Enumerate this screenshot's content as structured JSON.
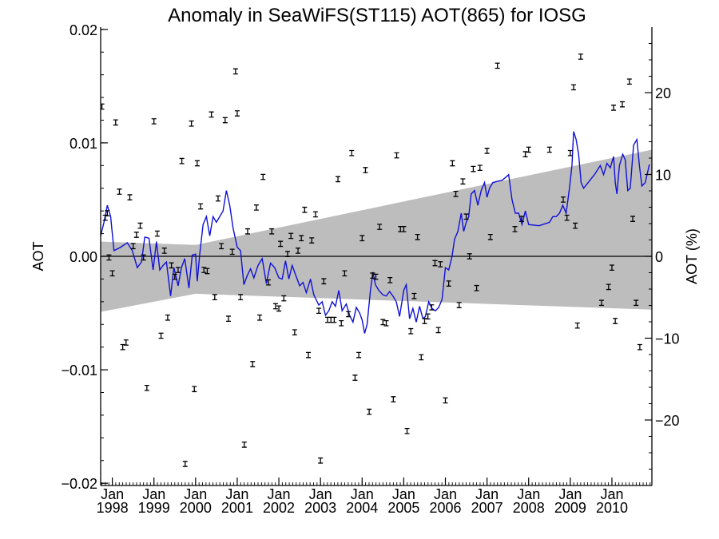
{
  "chart_data": {
    "type": "scatter",
    "title": "Anomaly in SeaWiFS(ST115) AOT(865) for IOSG",
    "ylabel": "AOT",
    "y2label": "AOT (%)",
    "xlabel": "",
    "xlim": [
      1997.72,
      2010.96
    ],
    "ylim": [
      -0.0202,
      0.0202
    ],
    "y2lim": [
      -28.0,
      28.0
    ],
    "y_ticks": [
      {
        "value": 0.02,
        "label": "0.02"
      },
      {
        "value": 0.01,
        "label": "0.01"
      },
      {
        "value": 0.0,
        "label": "0.00"
      },
      {
        "value": -0.01,
        "label": "−0.01"
      },
      {
        "value": -0.02,
        "label": "−0.02"
      }
    ],
    "y2_ticks": [
      {
        "value": 20,
        "label": "20"
      },
      {
        "value": 10,
        "label": "10"
      },
      {
        "value": 0,
        "label": "0"
      },
      {
        "value": -10,
        "label": "−10"
      },
      {
        "value": -20,
        "label": "−20"
      }
    ],
    "x_ticks": [
      {
        "value": 1998.0,
        "month": "Jan",
        "year": "1998"
      },
      {
        "value": 1999.0,
        "month": "Jan",
        "year": "1999"
      },
      {
        "value": 2000.0,
        "month": "Jan",
        "year": "2000"
      },
      {
        "value": 2001.0,
        "month": "Jan",
        "year": "2001"
      },
      {
        "value": 2002.0,
        "month": "Jan",
        "year": "2002"
      },
      {
        "value": 2003.0,
        "month": "Jan",
        "year": "2003"
      },
      {
        "value": 2004.0,
        "month": "Jan",
        "year": "2004"
      },
      {
        "value": 2005.0,
        "month": "Jan",
        "year": "2005"
      },
      {
        "value": 2006.0,
        "month": "Jan",
        "year": "2006"
      },
      {
        "value": 2007.0,
        "month": "Jan",
        "year": "2007"
      },
      {
        "value": 2008.0,
        "month": "Jan",
        "year": "2008"
      },
      {
        "value": 2009.0,
        "month": "Jan",
        "year": "2009"
      },
      {
        "value": 2010.0,
        "month": "Jan",
        "year": "2010"
      }
    ],
    "band_upper": [
      [
        1997.72,
        0.0013
      ],
      [
        2000.0,
        0.001
      ],
      [
        2010.96,
        0.0094
      ]
    ],
    "band_lower": [
      [
        1997.72,
        -0.0049
      ],
      [
        2000.0,
        -0.0033
      ],
      [
        2010.96,
        -0.0047
      ]
    ],
    "points": [
      [
        1997.75,
        0.0132
      ],
      [
        1997.83,
        0.0034
      ],
      [
        1997.88,
        0.0038
      ],
      [
        1997.92,
        -0.0001
      ],
      [
        1998.0,
        -0.0015
      ],
      [
        1998.08,
        0.0118
      ],
      [
        1998.17,
        0.0057
      ],
      [
        1998.25,
        -0.008
      ],
      [
        1998.33,
        -0.0076
      ],
      [
        1998.42,
        0.0052
      ],
      [
        1998.5,
        0.0009
      ],
      [
        1998.58,
        0.0019
      ],
      [
        1998.67,
        0.0027
      ],
      [
        1998.75,
        -0.0001
      ],
      [
        1998.83,
        -0.0116
      ],
      [
        1999.0,
        0.0119
      ],
      [
        1999.08,
        0.002
      ],
      [
        1999.17,
        -0.007
      ],
      [
        1999.25,
        0.0005
      ],
      [
        1999.33,
        -0.0054
      ],
      [
        1999.42,
        -0.0008
      ],
      [
        1999.5,
        -0.0018
      ],
      [
        1999.58,
        -0.0012
      ],
      [
        1999.67,
        0.0084
      ],
      [
        1999.75,
        -0.0183
      ],
      [
        1999.9,
        0.0117
      ],
      [
        1999.97,
        -0.0117
      ],
      [
        2000.04,
        0.0082
      ],
      [
        2000.12,
        0.0044
      ],
      [
        2000.2,
        -0.0012
      ],
      [
        2000.28,
        -0.0013
      ],
      [
        2000.38,
        0.0125
      ],
      [
        2000.46,
        -0.0036
      ],
      [
        2000.54,
        0.0051
      ],
      [
        2000.62,
        0.0009
      ],
      [
        2000.71,
        0.012
      ],
      [
        2000.79,
        -0.0055
      ],
      [
        2000.88,
        0.0004
      ],
      [
        2000.96,
        0.0163
      ],
      [
        2001.0,
        0.0126
      ],
      [
        2001.08,
        -0.0036
      ],
      [
        2001.17,
        -0.0166
      ],
      [
        2001.25,
        0.0022
      ],
      [
        2001.37,
        -0.0095
      ],
      [
        2001.46,
        0.0043
      ],
      [
        2001.54,
        -0.0054
      ],
      [
        2001.62,
        0.007
      ],
      [
        2001.75,
        -0.0023
      ],
      [
        2001.83,
        0.0022
      ],
      [
        2001.92,
        -0.0044
      ],
      [
        2002.0,
        -0.0046
      ],
      [
        2002.04,
        0.0011
      ],
      [
        2002.12,
        -0.0037
      ],
      [
        2002.21,
        0.0002
      ],
      [
        2002.29,
        0.0018
      ],
      [
        2002.38,
        -0.0067
      ],
      [
        2002.46,
        0.0005
      ],
      [
        2002.54,
        0.0016
      ],
      [
        2002.62,
        0.0041
      ],
      [
        2002.71,
        -0.0087
      ],
      [
        2002.79,
        0.0014
      ],
      [
        2002.88,
        0.0037
      ],
      [
        2002.96,
        -0.0048
      ],
      [
        2003.0,
        -0.018
      ],
      [
        2003.08,
        -0.0022
      ],
      [
        2003.17,
        -0.0056
      ],
      [
        2003.25,
        -0.0056
      ],
      [
        2003.33,
        -0.0056
      ],
      [
        2003.42,
        0.0068
      ],
      [
        2003.5,
        -0.0059
      ],
      [
        2003.58,
        -0.0015
      ],
      [
        2003.67,
        -0.0051
      ],
      [
        2003.75,
        0.0091
      ],
      [
        2003.83,
        -0.0107
      ],
      [
        2003.92,
        -0.0087
      ],
      [
        2004.0,
        0.0016
      ],
      [
        2004.08,
        0.0076
      ],
      [
        2004.17,
        -0.0137
      ],
      [
        2004.25,
        -0.0017
      ],
      [
        2004.33,
        -0.0018
      ],
      [
        2004.42,
        0.0026
      ],
      [
        2004.5,
        -0.0058
      ],
      [
        2004.58,
        -0.0059
      ],
      [
        2004.67,
        -0.0021
      ],
      [
        2004.75,
        -0.0126
      ],
      [
        2004.83,
        0.0089
      ],
      [
        2004.92,
        0.0024
      ],
      [
        2005.0,
        0.0024
      ],
      [
        2005.08,
        -0.0154
      ],
      [
        2005.17,
        -0.0066
      ],
      [
        2005.25,
        -0.0035
      ],
      [
        2005.33,
        0.0017
      ],
      [
        2005.42,
        -0.0089
      ],
      [
        2005.5,
        -0.0057
      ],
      [
        2005.58,
        -0.0053
      ],
      [
        2005.67,
        -0.0045
      ],
      [
        2005.75,
        -0.0006
      ],
      [
        2005.83,
        -0.0065
      ],
      [
        2005.88,
        -0.0007
      ],
      [
        2006.0,
        -0.0127
      ],
      [
        2006.08,
        -0.0024
      ],
      [
        2006.17,
        0.0082
      ],
      [
        2006.25,
        0.0055
      ],
      [
        2006.33,
        -0.0043
      ],
      [
        2006.42,
        0.0066
      ],
      [
        2006.5,
        0.0035
      ],
      [
        2006.58,
        0.0
      ],
      [
        2006.67,
        0.0077
      ],
      [
        2006.75,
        -0.0028
      ],
      [
        2006.83,
        0.0078
      ],
      [
        2007.0,
        0.0093
      ],
      [
        2007.08,
        0.0017
      ],
      [
        2007.25,
        0.0168
      ],
      [
        2007.67,
        0.0024
      ],
      [
        2007.83,
        0.0033
      ],
      [
        2007.92,
        0.009
      ],
      [
        2008.0,
        0.0094
      ],
      [
        2008.5,
        0.0094
      ],
      [
        2008.83,
        0.005
      ],
      [
        2008.92,
        0.0034
      ],
      [
        2009.0,
        0.0091
      ],
      [
        2009.08,
        0.0149
      ],
      [
        2009.12,
        0.0027
      ],
      [
        2009.17,
        -0.0061
      ],
      [
        2009.25,
        0.0176
      ],
      [
        2009.75,
        -0.0041
      ],
      [
        2009.92,
        -0.0027
      ],
      [
        2010.0,
        -0.001
      ],
      [
        2010.04,
        0.0131
      ],
      [
        2010.08,
        -0.0057
      ],
      [
        2010.25,
        0.0134
      ],
      [
        2010.42,
        0.0154
      ],
      [
        2010.5,
        0.0033
      ],
      [
        2010.58,
        -0.0041
      ],
      [
        2010.67,
        -0.008
      ]
    ],
    "line": [
      [
        1997.72,
        0.0018
      ],
      [
        1997.8,
        0.003
      ],
      [
        1997.88,
        0.0045
      ],
      [
        1997.96,
        0.0035
      ],
      [
        1998.04,
        0.0005
      ],
      [
        1998.2,
        0.0008
      ],
      [
        1998.36,
        0.0012
      ],
      [
        1998.48,
        0.0005
      ],
      [
        1998.6,
        -0.001
      ],
      [
        1998.7,
        -0.0005
      ],
      [
        1998.78,
        0.0017
      ],
      [
        1998.88,
        0.0016
      ],
      [
        1998.98,
        -0.0012
      ],
      [
        1999.06,
        0.0013
      ],
      [
        1999.14,
        -0.0012
      ],
      [
        1999.22,
        -0.0008
      ],
      [
        1999.3,
        -0.0005
      ],
      [
        1999.4,
        -0.0035
      ],
      [
        1999.48,
        -0.001
      ],
      [
        1999.58,
        -0.0026
      ],
      [
        1999.66,
        -0.001
      ],
      [
        1999.74,
        -0.0002
      ],
      [
        1999.84,
        -0.0028
      ],
      [
        1999.92,
        0.0001
      ],
      [
        2000.0,
        0.0002
      ],
      [
        2000.04,
        -0.0022
      ],
      [
        2000.1,
        0.0002
      ],
      [
        2000.18,
        0.0028
      ],
      [
        2000.26,
        0.0035
      ],
      [
        2000.34,
        0.0018
      ],
      [
        2000.42,
        0.0035
      ],
      [
        2000.5,
        0.003
      ],
      [
        2000.58,
        0.0035
      ],
      [
        2000.66,
        0.004
      ],
      [
        2000.74,
        0.0058
      ],
      [
        2000.82,
        0.0045
      ],
      [
        2000.9,
        0.0025
      ],
      [
        2001.0,
        0.0008
      ],
      [
        2001.08,
        0.0005
      ],
      [
        2001.16,
        -0.0025
      ],
      [
        2001.24,
        -0.0017
      ],
      [
        2001.32,
        -0.0011
      ],
      [
        2001.4,
        -0.0019
      ],
      [
        2001.5,
        -0.0008
      ],
      [
        2001.6,
        -0.0002
      ],
      [
        2001.7,
        -0.0024
      ],
      [
        2001.8,
        -0.0006
      ],
      [
        2001.9,
        -0.001
      ],
      [
        2002.0,
        -0.0019
      ],
      [
        2002.08,
        -0.002
      ],
      [
        2002.16,
        -0.0004
      ],
      [
        2002.24,
        -0.002
      ],
      [
        2002.32,
        -0.0008
      ],
      [
        2002.42,
        -0.0018
      ],
      [
        2002.5,
        -0.0026
      ],
      [
        2002.58,
        -0.0023
      ],
      [
        2002.66,
        -0.0032
      ],
      [
        2002.76,
        -0.002
      ],
      [
        2002.84,
        -0.0034
      ],
      [
        2002.96,
        -0.0043
      ],
      [
        2003.04,
        -0.004
      ],
      [
        2003.12,
        -0.0052
      ],
      [
        2003.2,
        -0.0048
      ],
      [
        2003.28,
        -0.004
      ],
      [
        2003.36,
        -0.0044
      ],
      [
        2003.44,
        -0.003
      ],
      [
        2003.52,
        -0.0048
      ],
      [
        2003.62,
        -0.0042
      ],
      [
        2003.7,
        -0.0052
      ],
      [
        2003.78,
        -0.0058
      ],
      [
        2003.86,
        -0.0045
      ],
      [
        2003.94,
        -0.005
      ],
      [
        2004.0,
        -0.0056
      ],
      [
        2004.06,
        -0.0068
      ],
      [
        2004.12,
        -0.006
      ],
      [
        2004.2,
        -0.003
      ],
      [
        2004.26,
        -0.0014
      ],
      [
        2004.32,
        -0.0025
      ],
      [
        2004.4,
        -0.003
      ],
      [
        2004.5,
        -0.0034
      ],
      [
        2004.58,
        -0.0035
      ],
      [
        2004.66,
        -0.0031
      ],
      [
        2004.74,
        -0.0035
      ],
      [
        2004.82,
        -0.004
      ],
      [
        2004.9,
        -0.0053
      ],
      [
        2005.0,
        -0.003
      ],
      [
        2005.06,
        -0.0025
      ],
      [
        2005.14,
        -0.0055
      ],
      [
        2005.22,
        -0.0046
      ],
      [
        2005.3,
        -0.0058
      ],
      [
        2005.38,
        -0.0044
      ],
      [
        2005.46,
        -0.0055
      ],
      [
        2005.52,
        -0.0053
      ],
      [
        2005.6,
        -0.004
      ],
      [
        2005.68,
        -0.0046
      ],
      [
        2005.76,
        -0.0048
      ],
      [
        2005.84,
        -0.0045
      ],
      [
        2005.92,
        -0.0038
      ],
      [
        2006.0,
        -0.001
      ],
      [
        2006.08,
        -0.0012
      ],
      [
        2006.16,
        0.0
      ],
      [
        2006.22,
        0.0015
      ],
      [
        2006.3,
        0.0022
      ],
      [
        2006.38,
        0.0038
      ],
      [
        2006.44,
        0.0022
      ],
      [
        2006.5,
        0.003
      ],
      [
        2006.56,
        0.0035
      ],
      [
        2006.62,
        0.0055
      ],
      [
        2006.7,
        0.0058
      ],
      [
        2006.78,
        0.0045
      ],
      [
        2006.86,
        0.0058
      ],
      [
        2006.94,
        0.0065
      ],
      [
        2007.0,
        0.0052
      ],
      [
        2007.06,
        0.006
      ],
      [
        2007.14,
        0.0065
      ],
      [
        2007.24,
        0.0066
      ],
      [
        2007.36,
        0.0067
      ],
      [
        2007.46,
        0.007
      ],
      [
        2007.52,
        0.0072
      ],
      [
        2007.6,
        0.005
      ],
      [
        2007.68,
        0.0038
      ],
      [
        2007.76,
        0.0038
      ],
      [
        2007.84,
        0.0028
      ],
      [
        2007.92,
        0.004
      ],
      [
        2008.0,
        0.0028
      ],
      [
        2008.25,
        0.0027
      ],
      [
        2008.5,
        0.003
      ],
      [
        2008.58,
        0.0035
      ],
      [
        2008.66,
        0.0035
      ],
      [
        2008.74,
        0.0038
      ],
      [
        2008.82,
        0.0045
      ],
      [
        2008.9,
        0.0038
      ],
      [
        2008.98,
        0.006
      ],
      [
        2009.04,
        0.008
      ],
      [
        2009.08,
        0.011
      ],
      [
        2009.14,
        0.0103
      ],
      [
        2009.2,
        0.009
      ],
      [
        2009.26,
        0.0065
      ],
      [
        2009.32,
        0.006
      ],
      [
        2009.58,
        0.0072
      ],
      [
        2009.72,
        0.008
      ],
      [
        2009.8,
        0.0072
      ],
      [
        2009.88,
        0.0082
      ],
      [
        2009.96,
        0.0078
      ],
      [
        2010.04,
        0.0088
      ],
      [
        2010.08,
        0.0065
      ],
      [
        2010.12,
        0.0055
      ],
      [
        2010.18,
        0.008
      ],
      [
        2010.26,
        0.009
      ],
      [
        2010.32,
        0.0085
      ],
      [
        2010.38,
        0.0058
      ],
      [
        2010.44,
        0.006
      ],
      [
        2010.52,
        0.0098
      ],
      [
        2010.6,
        0.0103
      ],
      [
        2010.66,
        0.008
      ],
      [
        2010.72,
        0.0062
      ],
      [
        2010.8,
        0.0065
      ],
      [
        2010.9,
        0.0081
      ]
    ]
  }
}
